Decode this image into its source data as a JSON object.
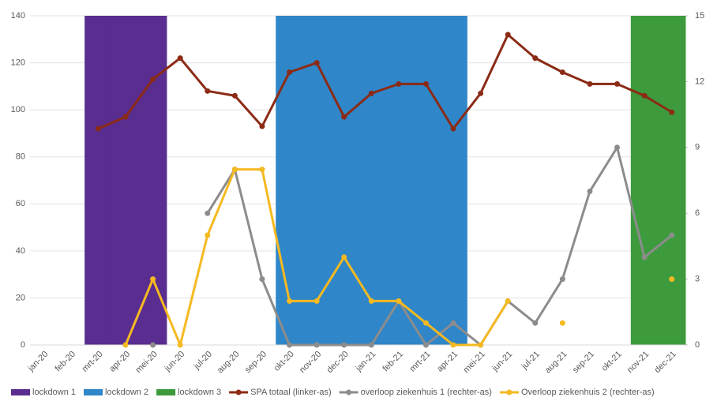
{
  "chart_data": {
    "type": "combo",
    "categories": [
      "jan-20",
      "feb-20",
      "mrt-20",
      "apr-20",
      "mei-20",
      "jun-20",
      "jul-20",
      "aug-20",
      "sep-20",
      "okt-20",
      "nov-20",
      "dec-20",
      "jan-21",
      "feb-21",
      "mrt-21",
      "apr-21",
      "mei-21",
      "jun-21",
      "jul-21",
      "aug-21",
      "sep-21",
      "okt-21",
      "nov-21",
      "dec-21"
    ],
    "ylim": [
      0,
      140
    ],
    "yticks": [
      0,
      20,
      40,
      60,
      80,
      100,
      120,
      140
    ],
    "y2lim": [
      0,
      15
    ],
    "y2ticks": [
      0,
      3,
      6,
      9,
      12,
      15
    ],
    "grid": true,
    "legend": "bottom",
    "series": [
      {
        "name": "lockdown 1",
        "type": "bar",
        "color": "#5a2d90",
        "values": [
          null,
          null,
          140,
          140,
          140,
          null,
          null,
          null,
          null,
          null,
          null,
          null,
          null,
          null,
          null,
          null,
          null,
          null,
          null,
          null,
          null,
          null,
          null,
          null
        ]
      },
      {
        "name": "lockdown 2",
        "type": "bar",
        "color": "#2f86c8",
        "values": [
          null,
          null,
          null,
          null,
          null,
          null,
          null,
          null,
          null,
          140,
          140,
          140,
          140,
          140,
          140,
          140,
          null,
          null,
          null,
          null,
          null,
          null,
          null,
          null
        ]
      },
      {
        "name": "lockdown 3",
        "type": "bar",
        "color": "#3d9b3d",
        "values": [
          null,
          null,
          null,
          null,
          null,
          null,
          null,
          null,
          null,
          null,
          null,
          null,
          null,
          null,
          null,
          null,
          null,
          null,
          null,
          null,
          null,
          null,
          140,
          140
        ]
      },
      {
        "name": "SPA totaal (linker-as)",
        "type": "line",
        "color": "#8b2b16",
        "values": [
          null,
          null,
          92,
          97,
          113,
          122,
          108,
          106,
          93,
          116,
          120,
          97,
          107,
          111,
          111,
          92,
          107,
          132,
          122,
          116,
          111,
          111,
          106,
          99
        ]
      },
      {
        "name": "overloop ziekenhuis 1 (rechter-as)",
        "type": "line",
        "axis": "y2",
        "color": "#8c8c8c",
        "values": [
          null,
          null,
          null,
          null,
          0,
          null,
          6,
          8,
          3,
          0,
          0,
          0,
          0,
          2,
          0,
          1,
          0,
          2,
          1,
          3,
          7,
          9,
          4,
          5
        ]
      },
      {
        "name": "Overloop ziekenhuis 2 (rechter-as)",
        "type": "line",
        "axis": "y2",
        "color": "#f5b921",
        "values": [
          null,
          null,
          null,
          0,
          3,
          0,
          5,
          8,
          8,
          2,
          2,
          4,
          2,
          2,
          1,
          0,
          0,
          2,
          null,
          1,
          null,
          null,
          null,
          3
        ]
      }
    ]
  }
}
